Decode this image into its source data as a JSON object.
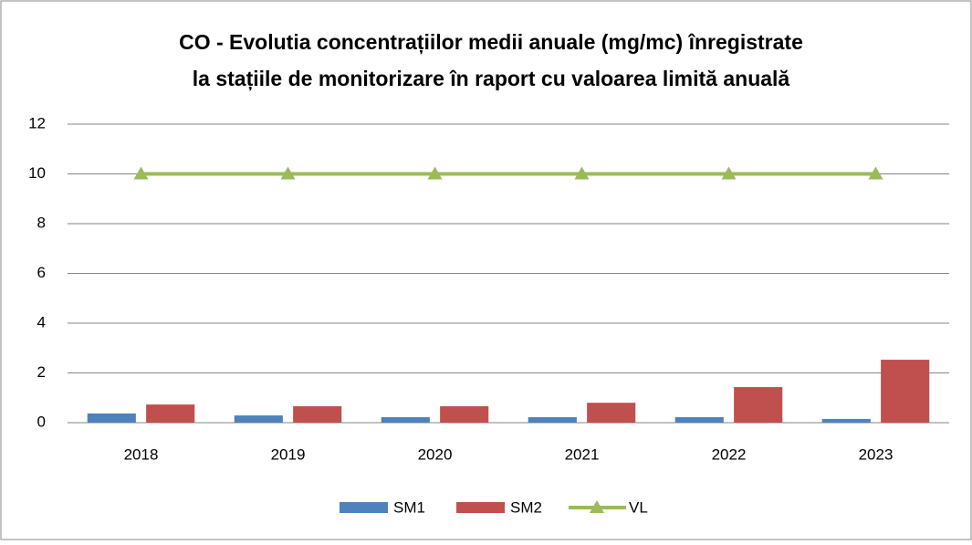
{
  "chart_data": {
    "type": "bar_line",
    "title": [
      "CO - Evolutia concentrațiilor medii anuale (mg/mc) înregistrate",
      "la stațiile de monitorizare în raport cu valoarea limită anuală"
    ],
    "categories": [
      "2018",
      "2019",
      "2020",
      "2021",
      "2022",
      "2023"
    ],
    "series": [
      {
        "name": "SM1",
        "color": "#4f81bd",
        "kind": "bar",
        "values": [
          0.37,
          0.29,
          0.22,
          0.22,
          0.22,
          0.15
        ]
      },
      {
        "name": "SM2",
        "color": "#c0504d",
        "kind": "bar",
        "values": [
          0.73,
          0.66,
          0.66,
          0.8,
          1.43,
          2.53
        ]
      },
      {
        "name": "VL",
        "color": "#9bbb59",
        "kind": "line",
        "values": [
          10,
          10,
          10,
          10,
          10,
          10
        ]
      }
    ],
    "ylim": [
      0,
      12
    ],
    "yticks": [
      0,
      2,
      4,
      6,
      8,
      10,
      12
    ],
    "grid": true,
    "legend": "bottom"
  }
}
